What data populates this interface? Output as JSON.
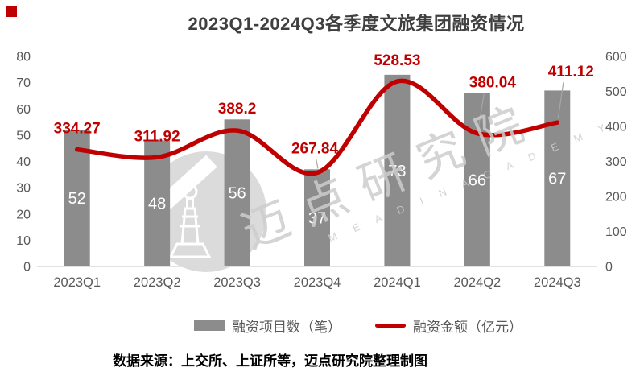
{
  "title": "2023Q1-2024Q3各季度文旅集团融资情况",
  "brand": {
    "square_color": "#c00000"
  },
  "chart_data": {
    "type": "bar",
    "subtype": "bar+line combo, dual axis",
    "categories": [
      "2023Q1",
      "2023Q2",
      "2023Q3",
      "2023Q4",
      "2024Q1",
      "2024Q2",
      "2024Q3"
    ],
    "series": [
      {
        "name": "融资项目数（笔）",
        "type": "bar",
        "axis": "left",
        "color": "#8c8c8c",
        "values": [
          52,
          48,
          56,
          37,
          73,
          66,
          67
        ],
        "labels": [
          "52",
          "48",
          "56",
          "37",
          "73",
          "66",
          "67"
        ]
      },
      {
        "name": "融资金额（亿元）",
        "type": "line",
        "axis": "right",
        "color": "#c00000",
        "values": [
          334.27,
          311.92,
          388.2,
          267.84,
          528.53,
          380.04,
          411.12
        ],
        "labels": [
          "334.27",
          "311.92",
          "388.2",
          "267.84",
          "528.53",
          "380.04",
          "411.12"
        ]
      }
    ],
    "left_axis": {
      "min": 0,
      "max": 80,
      "step": 10,
      "tick_labels": [
        "0",
        "10",
        "20",
        "30",
        "40",
        "50",
        "60",
        "70",
        "80"
      ]
    },
    "right_axis": {
      "min": 0,
      "max": 600,
      "step": 100,
      "tick_labels": [
        "0",
        "100",
        "200",
        "300",
        "400",
        "500",
        "600"
      ]
    },
    "title": "2023Q1-2024Q3各季度文旅集团融资情况",
    "grid": false,
    "legend_position": "bottom"
  },
  "legend": {
    "bar_label": "融资项目数（笔）",
    "line_label": "融资金额（亿元）"
  },
  "source_note": "数据来源：上交所、上证所等，迈点研究院整理制图",
  "watermark": {
    "cn": "迈点研究院",
    "en": "M E A D I N  A C A D E M Y"
  },
  "colors": {
    "bar": "#8c8c8c",
    "line": "#c00000",
    "data_label": "#c00000",
    "axis_text": "#595959",
    "axis_line": "#d9d9d9",
    "title_text": "#3f3f3f"
  }
}
